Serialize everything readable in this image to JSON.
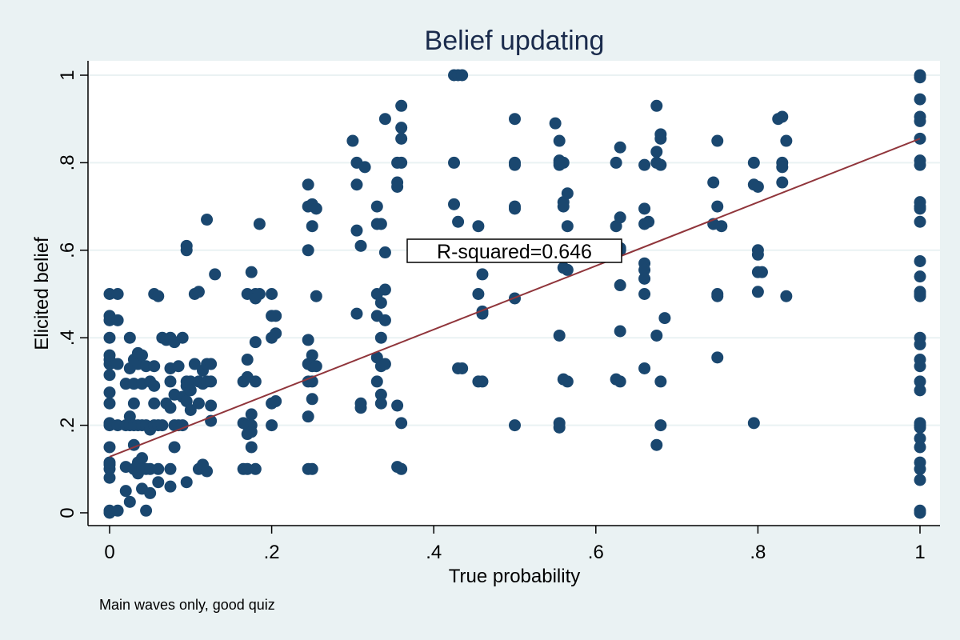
{
  "chart_data": {
    "type": "scatter",
    "title": "Belief updating",
    "xlabel": "True probability",
    "ylabel": "Elicited belief",
    "note": "Main waves only, good quiz",
    "annotation": "R-squared=0.646",
    "xlim": [
      0,
      1
    ],
    "ylim": [
      0,
      1
    ],
    "xticks": [
      "0",
      ".2",
      ".4",
      ".6",
      ".8",
      "1"
    ],
    "yticks": [
      "0",
      ".2",
      ".4",
      ".6",
      ".8",
      "1"
    ],
    "grid": true,
    "colors": {
      "points": "#1a476f",
      "fit_line": "#90353b",
      "background": "#eaf2f3",
      "plot_area": "#ffffff",
      "grid": "#eaf2f3"
    },
    "fit_line": {
      "x": [
        0,
        1
      ],
      "y": [
        0.128,
        0.855
      ]
    },
    "points": [
      [
        0,
        0
      ],
      [
        0,
        0.005
      ],
      [
        0,
        0.08
      ],
      [
        0,
        0.1
      ],
      [
        0,
        0.11
      ],
      [
        0,
        0.115
      ],
      [
        0,
        0.15
      ],
      [
        0,
        0.2
      ],
      [
        0,
        0.205
      ],
      [
        0,
        0.25
      ],
      [
        0,
        0.275
      ],
      [
        0,
        0.315
      ],
      [
        0,
        0.34
      ],
      [
        0,
        0.35
      ],
      [
        0,
        0.36
      ],
      [
        0,
        0.4
      ],
      [
        0,
        0.44
      ],
      [
        0,
        0.45
      ],
      [
        0,
        0.5
      ],
      [
        0.01,
        0.5
      ],
      [
        0.01,
        0.2
      ],
      [
        0.01,
        0.005
      ],
      [
        0.01,
        0.34
      ],
      [
        0.01,
        0.44
      ],
      [
        0.02,
        0.2
      ],
      [
        0.02,
        0.295
      ],
      [
        0.02,
        0.05
      ],
      [
        0.02,
        0.105
      ],
      [
        0.025,
        0.4
      ],
      [
        0.025,
        0.2
      ],
      [
        0.025,
        0.33
      ],
      [
        0.025,
        0.025
      ],
      [
        0.025,
        0.22
      ],
      [
        0.03,
        0.1
      ],
      [
        0.03,
        0.155
      ],
      [
        0.03,
        0.2
      ],
      [
        0.03,
        0.295
      ],
      [
        0.03,
        0.25
      ],
      [
        0.03,
        0.35
      ],
      [
        0.035,
        0.34
      ],
      [
        0.035,
        0.2
      ],
      [
        0.035,
        0.09
      ],
      [
        0.035,
        0.365
      ],
      [
        0.035,
        0.115
      ],
      [
        0.04,
        0.1
      ],
      [
        0.04,
        0.2
      ],
      [
        0.04,
        0.295
      ],
      [
        0.04,
        0.055
      ],
      [
        0.04,
        0.125
      ],
      [
        0.04,
        0.36
      ],
      [
        0.045,
        0.005
      ],
      [
        0.045,
        0.1
      ],
      [
        0.045,
        0.2
      ],
      [
        0.045,
        0.335
      ],
      [
        0.05,
        0.19
      ],
      [
        0.05,
        0.3
      ],
      [
        0.05,
        0.1
      ],
      [
        0.05,
        0.045
      ],
      [
        0.055,
        0.2
      ],
      [
        0.055,
        0.5
      ],
      [
        0.055,
        0.25
      ],
      [
        0.055,
        0.29
      ],
      [
        0.055,
        0.335
      ],
      [
        0.06,
        0.07
      ],
      [
        0.06,
        0.1
      ],
      [
        0.06,
        0.2
      ],
      [
        0.06,
        0.495
      ],
      [
        0.065,
        0.4
      ],
      [
        0.065,
        0.2
      ],
      [
        0.07,
        0.25
      ],
      [
        0.07,
        0.395
      ],
      [
        0.075,
        0.4
      ],
      [
        0.075,
        0.24
      ],
      [
        0.075,
        0.33
      ],
      [
        0.075,
        0.1
      ],
      [
        0.075,
        0.06
      ],
      [
        0.075,
        0.3
      ],
      [
        0.08,
        0.2
      ],
      [
        0.08,
        0.27
      ],
      [
        0.08,
        0.39
      ],
      [
        0.08,
        0.15
      ],
      [
        0.085,
        0.335
      ],
      [
        0.085,
        0.2
      ],
      [
        0.09,
        0.265
      ],
      [
        0.09,
        0.4
      ],
      [
        0.09,
        0.2
      ],
      [
        0.095,
        0.6
      ],
      [
        0.095,
        0.61
      ],
      [
        0.095,
        0.07
      ],
      [
        0.095,
        0.3
      ],
      [
        0.095,
        0.29
      ],
      [
        0.095,
        0.255
      ],
      [
        0.1,
        0.3
      ],
      [
        0.1,
        0.235
      ],
      [
        0.1,
        0.28
      ],
      [
        0.105,
        0.5
      ],
      [
        0.105,
        0.34
      ],
      [
        0.11,
        0.3
      ],
      [
        0.11,
        0.25
      ],
      [
        0.11,
        0.1
      ],
      [
        0.11,
        0.505
      ],
      [
        0.115,
        0.11
      ],
      [
        0.115,
        0.295
      ],
      [
        0.115,
        0.325
      ],
      [
        0.12,
        0.67
      ],
      [
        0.12,
        0.34
      ],
      [
        0.12,
        0.3
      ],
      [
        0.12,
        0.095
      ],
      [
        0.125,
        0.21
      ],
      [
        0.125,
        0.245
      ],
      [
        0.125,
        0.34
      ],
      [
        0.125,
        0.3
      ],
      [
        0.13,
        0.545
      ],
      [
        0.165,
        0.1
      ],
      [
        0.165,
        0.3
      ],
      [
        0.165,
        0.205
      ],
      [
        0.17,
        0.31
      ],
      [
        0.17,
        0.2
      ],
      [
        0.17,
        0.5
      ],
      [
        0.17,
        0.18
      ],
      [
        0.17,
        0.1
      ],
      [
        0.17,
        0.35
      ],
      [
        0.175,
        0.2
      ],
      [
        0.175,
        0.15
      ],
      [
        0.175,
        0.225
      ],
      [
        0.175,
        0.55
      ],
      [
        0.175,
        0.185
      ],
      [
        0.18,
        0.5
      ],
      [
        0.18,
        0.49
      ],
      [
        0.18,
        0.39
      ],
      [
        0.18,
        0.3
      ],
      [
        0.18,
        0.1
      ],
      [
        0.185,
        0.66
      ],
      [
        0.185,
        0.5
      ],
      [
        0.2,
        0.45
      ],
      [
        0.2,
        0.4
      ],
      [
        0.2,
        0.25
      ],
      [
        0.2,
        0.2
      ],
      [
        0.2,
        0.5
      ],
      [
        0.205,
        0.41
      ],
      [
        0.205,
        0.255
      ],
      [
        0.205,
        0.45
      ],
      [
        0.245,
        0.75
      ],
      [
        0.245,
        0.7
      ],
      [
        0.245,
        0.6
      ],
      [
        0.245,
        0.395
      ],
      [
        0.245,
        0.34
      ],
      [
        0.245,
        0.3
      ],
      [
        0.245,
        0.22
      ],
      [
        0.245,
        0.1
      ],
      [
        0.25,
        0.705
      ],
      [
        0.25,
        0.655
      ],
      [
        0.25,
        0.36
      ],
      [
        0.25,
        0.335
      ],
      [
        0.25,
        0.3
      ],
      [
        0.25,
        0.26
      ],
      [
        0.25,
        0.1
      ],
      [
        0.255,
        0.695
      ],
      [
        0.255,
        0.495
      ],
      [
        0.255,
        0.335
      ],
      [
        0.3,
        0.85
      ],
      [
        0.305,
        0.8
      ],
      [
        0.305,
        0.75
      ],
      [
        0.305,
        0.645
      ],
      [
        0.305,
        0.455
      ],
      [
        0.31,
        0.61
      ],
      [
        0.31,
        0.25
      ],
      [
        0.31,
        0.24
      ],
      [
        0.315,
        0.79
      ],
      [
        0.33,
        0.7
      ],
      [
        0.33,
        0.66
      ],
      [
        0.33,
        0.5
      ],
      [
        0.33,
        0.45
      ],
      [
        0.33,
        0.355
      ],
      [
        0.33,
        0.3
      ],
      [
        0.335,
        0.66
      ],
      [
        0.335,
        0.48
      ],
      [
        0.335,
        0.4
      ],
      [
        0.335,
        0.335
      ],
      [
        0.335,
        0.27
      ],
      [
        0.335,
        0.25
      ],
      [
        0.34,
        0.9
      ],
      [
        0.34,
        0.595
      ],
      [
        0.34,
        0.51
      ],
      [
        0.34,
        0.44
      ],
      [
        0.34,
        0.34
      ],
      [
        0.355,
        0.8
      ],
      [
        0.355,
        0.755
      ],
      [
        0.355,
        0.745
      ],
      [
        0.355,
        0.245
      ],
      [
        0.355,
        0.105
      ],
      [
        0.36,
        0.93
      ],
      [
        0.36,
        0.88
      ],
      [
        0.36,
        0.855
      ],
      [
        0.36,
        0.8
      ],
      [
        0.36,
        0.205
      ],
      [
        0.36,
        0.1
      ],
      [
        0.425,
        1
      ],
      [
        0.43,
        1
      ],
      [
        0.435,
        1
      ],
      [
        0.425,
        0.8
      ],
      [
        0.425,
        0.705
      ],
      [
        0.43,
        0.665
      ],
      [
        0.43,
        0.33
      ],
      [
        0.435,
        0.33
      ],
      [
        0.455,
        0.655
      ],
      [
        0.455,
        0.5
      ],
      [
        0.455,
        0.3
      ],
      [
        0.46,
        0.545
      ],
      [
        0.46,
        0.46
      ],
      [
        0.46,
        0.3
      ],
      [
        0.46,
        0.455
      ],
      [
        0.5,
        0.9
      ],
      [
        0.5,
        0.8
      ],
      [
        0.5,
        0.795
      ],
      [
        0.5,
        0.7
      ],
      [
        0.5,
        0.695
      ],
      [
        0.5,
        0.49
      ],
      [
        0.5,
        0.2
      ],
      [
        0.55,
        0.89
      ],
      [
        0.555,
        0.805
      ],
      [
        0.555,
        0.8
      ],
      [
        0.555,
        0.795
      ],
      [
        0.555,
        0.405
      ],
      [
        0.555,
        0.205
      ],
      [
        0.555,
        0.195
      ],
      [
        0.555,
        0.85
      ],
      [
        0.56,
        0.8
      ],
      [
        0.56,
        0.71
      ],
      [
        0.56,
        0.7
      ],
      [
        0.56,
        0.305
      ],
      [
        0.56,
        0.56
      ],
      [
        0.565,
        0.73
      ],
      [
        0.565,
        0.655
      ],
      [
        0.565,
        0.555
      ],
      [
        0.565,
        0.3
      ],
      [
        0.625,
        0.655
      ],
      [
        0.625,
        0.8
      ],
      [
        0.625,
        0.305
      ],
      [
        0.63,
        0.835
      ],
      [
        0.63,
        0.675
      ],
      [
        0.63,
        0.605
      ],
      [
        0.63,
        0.52
      ],
      [
        0.63,
        0.415
      ],
      [
        0.63,
        0.3
      ],
      [
        0.63,
        0.6
      ],
      [
        0.66,
        0.795
      ],
      [
        0.66,
        0.695
      ],
      [
        0.66,
        0.66
      ],
      [
        0.66,
        0.57
      ],
      [
        0.66,
        0.555
      ],
      [
        0.66,
        0.535
      ],
      [
        0.66,
        0.5
      ],
      [
        0.66,
        0.33
      ],
      [
        0.665,
        0.665
      ],
      [
        0.675,
        0.93
      ],
      [
        0.675,
        0.825
      ],
      [
        0.675,
        0.8
      ],
      [
        0.675,
        0.405
      ],
      [
        0.675,
        0.155
      ],
      [
        0.68,
        0.865
      ],
      [
        0.68,
        0.855
      ],
      [
        0.68,
        0.795
      ],
      [
        0.68,
        0.2
      ],
      [
        0.68,
        0.3
      ],
      [
        0.685,
        0.445
      ],
      [
        0.745,
        0.755
      ],
      [
        0.745,
        0.66
      ],
      [
        0.75,
        0.85
      ],
      [
        0.75,
        0.7
      ],
      [
        0.75,
        0.5
      ],
      [
        0.75,
        0.355
      ],
      [
        0.755,
        0.655
      ],
      [
        0.75,
        0.495
      ],
      [
        0.795,
        0.8
      ],
      [
        0.795,
        0.75
      ],
      [
        0.795,
        0.205
      ],
      [
        0.8,
        0.6
      ],
      [
        0.8,
        0.59
      ],
      [
        0.8,
        0.55
      ],
      [
        0.8,
        0.745
      ],
      [
        0.8,
        0.505
      ],
      [
        0.805,
        0.55
      ],
      [
        0.825,
        0.9
      ],
      [
        0.83,
        0.905
      ],
      [
        0.83,
        0.8
      ],
      [
        0.83,
        0.79
      ],
      [
        0.83,
        0.755
      ],
      [
        0.835,
        0.85
      ],
      [
        0.835,
        0.495
      ],
      [
        1,
        1
      ],
      [
        1,
        0.995
      ],
      [
        1,
        0.945
      ],
      [
        1,
        0.905
      ],
      [
        1,
        0.895
      ],
      [
        1,
        0.855
      ],
      [
        1,
        0.805
      ],
      [
        1,
        0.795
      ],
      [
        1,
        0.71
      ],
      [
        1,
        0.7
      ],
      [
        1,
        0.695
      ],
      [
        1,
        0.665
      ],
      [
        1,
        0.575
      ],
      [
        1,
        0.54
      ],
      [
        1,
        0.505
      ],
      [
        1,
        0.5
      ],
      [
        1,
        0.495
      ],
      [
        1,
        0.4
      ],
      [
        1,
        0.385
      ],
      [
        1,
        0.35
      ],
      [
        1,
        0.335
      ],
      [
        1,
        0.3
      ],
      [
        1,
        0.28
      ],
      [
        1,
        0.205
      ],
      [
        1,
        0.2
      ],
      [
        1,
        0.195
      ],
      [
        1,
        0.17
      ],
      [
        1,
        0.15
      ],
      [
        1,
        0.115
      ],
      [
        1,
        0.1
      ],
      [
        1,
        0.075
      ],
      [
        1,
        0.005
      ],
      [
        1,
        0
      ]
    ]
  }
}
